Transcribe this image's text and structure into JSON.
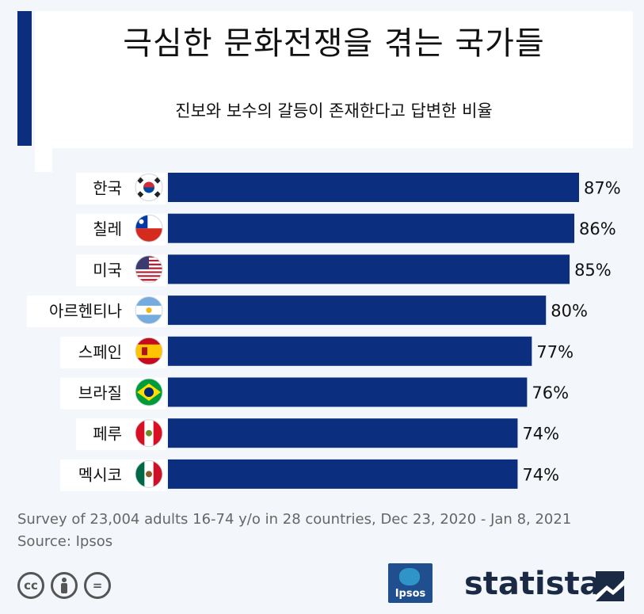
{
  "title": "극심한 문화전쟁을 겪는 국가들",
  "subtitle": "진보와 보수의 갈등이 존재한다고 답변한 비율",
  "chart_data": {
    "type": "bar",
    "orientation": "horizontal",
    "categories": [
      "한국",
      "칠레",
      "미국",
      "아르헨티나",
      "스페인",
      "브라질",
      "페루",
      "멕시코"
    ],
    "values": [
      87,
      86,
      85,
      80,
      77,
      76,
      74,
      74
    ],
    "value_suffix": "%",
    "bar_color": "#0b2f7e",
    "flag_icons": [
      "south-korea-flag-icon",
      "chile-flag-icon",
      "usa-flag-icon",
      "argentina-flag-icon",
      "spain-flag-icon",
      "brazil-flag-icon",
      "peru-flag-icon",
      "mexico-flag-icon"
    ],
    "xlim": [
      0,
      87
    ],
    "grid": false
  },
  "footer": {
    "survey_note": "Survey of 23,004 adults 16-74 y/o in 28 countries, Dec 23, 2020 - Jan 8, 2021",
    "source": "Source: Ipsos",
    "ipsos_label": "Ipsos",
    "statista_label": "statista",
    "cc_labels": [
      "cc",
      "=",
      ""
    ]
  },
  "colors": {
    "accent": "#0b2f7e",
    "background": "#f3f6fa"
  }
}
